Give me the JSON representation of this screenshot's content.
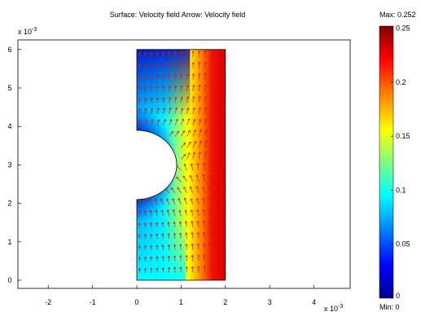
{
  "plot": {
    "title": "Surface: Velocity field    Arrow: Velocity field",
    "x_exponent_label": "x 10",
    "y_exponent_label": "x 10",
    "exponent": "-3",
    "x_ticks": [
      "-2",
      "-1",
      "0",
      "1",
      "2",
      "3",
      "4"
    ],
    "y_ticks": [
      "0",
      "1",
      "2",
      "3",
      "4",
      "5",
      "6"
    ],
    "arrow_color": "#d11a1a"
  },
  "colorbar": {
    "max_label": "Max: 0.252",
    "min_label": "Min: 0",
    "ticks": [
      "0.25",
      "0.2",
      "0.15",
      "0.1",
      "0.05",
      "0"
    ],
    "colors": [
      "#00008f",
      "#0000ff",
      "#00ffff",
      "#ffff00",
      "#ff0000",
      "#800000"
    ]
  },
  "chart_data": {
    "type": "heatmap",
    "title": "Surface: Velocity field    Arrow: Velocity field",
    "xlim": [
      -2.5,
      4.6
    ],
    "ylim": [
      -0.3,
      6.2
    ],
    "x_scale_exponent": -3,
    "y_scale_exponent": -3,
    "domain": {
      "x": [
        0,
        2
      ],
      "y": [
        0,
        6
      ]
    },
    "obstacle": {
      "shape": "half-circle",
      "center": [
        0,
        3
      ],
      "radius": 0.9
    },
    "colorbar_range": [
      0,
      0.252
    ],
    "colorbar_ticks": [
      0,
      0.05,
      0.1,
      0.15,
      0.2,
      0.25
    ]
  }
}
